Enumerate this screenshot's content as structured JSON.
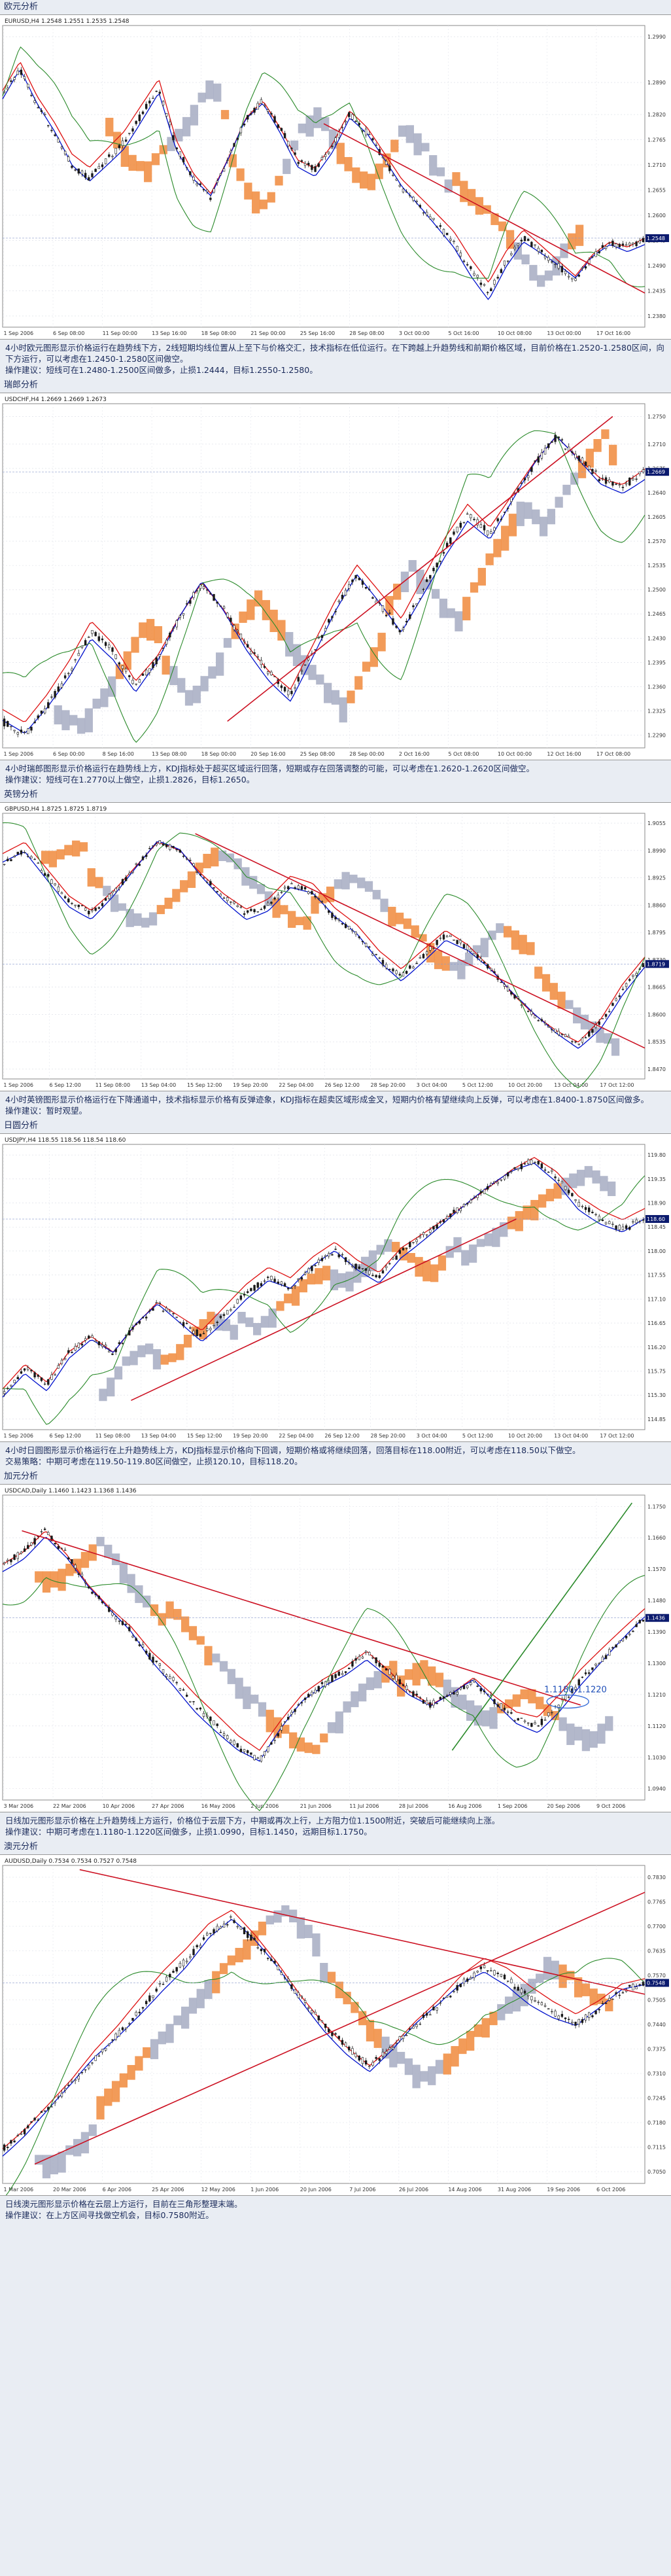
{
  "sections": [
    {
      "title": "欧元分析",
      "chart_data": {
        "type": "candlestick",
        "symbol_line": "EURUSD,H4  1.2548  1.2551  1.2535  1.2548",
        "x_ticks": [
          "1 Sep 2006",
          "6 Sep 08:00",
          "11 Sep 00:00",
          "13 Sep 16:00",
          "18 Sep 08:00",
          "21 Sep 00:00",
          "25 Sep 16:00",
          "28 Sep 08:00",
          "3 Oct 00:00",
          "5 Oct 16:00",
          "10 Oct 08:00",
          "13 Oct 00:00",
          "17 Oct 16:00"
        ],
        "y_ticks": [
          "1.2990",
          "1.2890",
          "1.2820",
          "1.2765",
          "1.2710",
          "1.2655",
          "1.2600",
          "1.2545",
          "1.2490",
          "1.2435",
          "1.2380"
        ],
        "price_badge": "1.2548",
        "path": [
          1.286,
          1.292,
          1.284,
          1.278,
          1.271,
          1.268,
          1.272,
          1.276,
          1.282,
          1.288,
          1.275,
          1.268,
          1.264,
          1.272,
          1.281,
          1.285,
          1.279,
          1.272,
          1.27,
          1.275,
          1.282,
          1.278,
          1.272,
          1.266,
          1.262,
          1.258,
          1.254,
          1.248,
          1.243,
          1.25,
          1.255,
          1.252,
          1.249,
          1.246,
          1.251,
          1.254,
          1.253,
          1.255
        ],
        "trend_lines": [
          {
            "from": [
              0.5,
              1.28
            ],
            "to": [
              1.0,
              1.243
            ],
            "color": "#cc1122"
          }
        ],
        "cloud_span": [
          0.16,
          0.9
        ]
      },
      "desc": [
        "4小时欧元图形显示价格运行在趋势线下方，2线短期均线位置从上至下与价格交汇，技术指标在低位运行。在下跨越上升趋势线和前期价格区域，目前价格在1.2520-1.2580区间，向下方运行，可以考虑在1.2450-1.2580区间做空。",
        "操作建议：短线可在1.2480-1.2500区间做多，止损1.2444，目标1.2550-1.2580。"
      ]
    },
    {
      "title": "瑞郎分析",
      "chart_data": {
        "type": "candlestick",
        "symbol_line": "USDCHF,H4  1.2669  1.2669  1.2673",
        "x_ticks": [
          "1 Sep 2006",
          "6 Sep 00:00",
          "8 Sep 16:00",
          "13 Sep 08:00",
          "18 Sep 00:00",
          "20 Sep 16:00",
          "25 Sep 08:00",
          "28 Sep 00:00",
          "2 Oct 16:00",
          "5 Oct 08:00",
          "10 Oct 00:00",
          "12 Oct 16:00",
          "17 Oct 08:00"
        ],
        "y_ticks": [
          "1.2750",
          "1.2710",
          "1.2675",
          "1.2640",
          "1.2605",
          "1.2570",
          "1.2535",
          "1.2500",
          "1.2465",
          "1.2430",
          "1.2395",
          "1.2360",
          "1.2325",
          "1.2290"
        ],
        "price_badge": "1.2669",
        "path": [
          1.231,
          1.229,
          1.233,
          1.238,
          1.244,
          1.241,
          1.236,
          1.24,
          1.246,
          1.251,
          1.247,
          1.242,
          1.238,
          1.235,
          1.241,
          1.247,
          1.252,
          1.248,
          1.244,
          1.25,
          1.256,
          1.261,
          1.258,
          1.263,
          1.268,
          1.272,
          1.269,
          1.266,
          1.265,
          1.267
        ],
        "trend_lines": [
          {
            "from": [
              0.35,
              1.231
            ],
            "to": [
              0.95,
              1.275
            ],
            "color": "#cc1122"
          }
        ],
        "cloud_span": [
          0.08,
          0.95
        ]
      },
      "desc": [
        "4小时瑞郎图形显示价格运行在趋势线上方，KDJ指标处于超买区域运行回落，短期或存在回落调整的可能，可以考虑在1.2620-1.2620区间做空。",
        "操作建议：短线可在1.2770以上做空，止损1.2826，目标1.2650。"
      ]
    },
    {
      "title": "英镑分析",
      "chart_data": {
        "type": "candlestick",
        "symbol_line": "GBPUSD,H4  1.8725  1.8725  1.8719",
        "x_ticks": [
          "1 Sep 2006",
          "6 Sep 12:00",
          "11 Sep 08:00",
          "13 Sep 04:00",
          "15 Sep 12:00",
          "19 Sep 20:00",
          "22 Sep 04:00",
          "26 Sep 12:00",
          "28 Sep 20:00",
          "3 Oct 04:00",
          "5 Oct 12:00",
          "10 Oct 20:00",
          "13 Oct 04:00",
          "17 Oct 12:00"
        ],
        "y_ticks": [
          "1.9055",
          "1.8990",
          "1.8925",
          "1.8860",
          "1.8795",
          "1.8730",
          "1.8665",
          "1.8600",
          "1.8535",
          "1.8470"
        ],
        "price_badge": "1.8719",
        "path": [
          1.896,
          1.899,
          1.893,
          1.887,
          1.884,
          1.889,
          1.895,
          1.901,
          1.899,
          1.893,
          1.888,
          1.884,
          1.886,
          1.891,
          1.889,
          1.883,
          1.879,
          1.873,
          1.869,
          1.874,
          1.879,
          1.876,
          1.871,
          1.865,
          1.86,
          1.856,
          1.853,
          1.858,
          1.866,
          1.872
        ],
        "trend_lines": [
          {
            "from": [
              0.3,
              1.903
            ],
            "to": [
              1.0,
              1.852
            ],
            "color": "#cc1122"
          }
        ],
        "cloud_span": [
          0.06,
          0.95
        ]
      },
      "desc": [
        "4小时英镑图形显示价格运行在下降通道中，技术指标显示价格有反弹迹象，KDJ指标在超卖区域形成金叉，短期内价格有望继续向上反弹，可以考虑在1.8400-1.8750区间做多。",
        "操作建议：暂时观望。"
      ]
    },
    {
      "title": "日圆分析",
      "chart_data": {
        "type": "candlestick",
        "symbol_line": "USDJPY,H4  118.55  118.56  118.54  118.60",
        "x_ticks": [
          "1 Sep 2006",
          "6 Sep 12:00",
          "11 Sep 08:00",
          "13 Sep 04:00",
          "15 Sep 12:00",
          "19 Sep 20:00",
          "22 Sep 04:00",
          "26 Sep 12:00",
          "28 Sep 20:00",
          "3 Oct 04:00",
          "5 Oct 12:00",
          "10 Oct 20:00",
          "13 Oct 04:00",
          "17 Oct 12:00"
        ],
        "y_ticks": [
          "119.80",
          "119.35",
          "118.90",
          "118.45",
          "118.00",
          "117.55",
          "117.10",
          "116.65",
          "116.20",
          "115.75",
          "115.30",
          "114.85"
        ],
        "price_badge": "118.60",
        "path": [
          115.3,
          115.8,
          115.5,
          116.1,
          116.4,
          116.1,
          116.6,
          117.0,
          116.7,
          116.4,
          116.8,
          117.2,
          117.5,
          117.3,
          117.7,
          118.0,
          117.7,
          117.5,
          118.0,
          118.3,
          118.6,
          118.9,
          119.2,
          119.5,
          119.7,
          119.4,
          118.9,
          118.6,
          118.4,
          118.6
        ],
        "trend_lines": [
          {
            "from": [
              0.2,
              115.2
            ],
            "to": [
              0.8,
              118.6
            ],
            "color": "#cc1122"
          }
        ],
        "cloud_span": [
          0.15,
          0.95
        ]
      },
      "desc": [
        "4小时日圆图形显示价格运行在上升趋势线上方，KDJ指标显示价格向下回调，短期价格或将继续回落，回落目标在118.00附近，可以考虑在118.50以下做空。",
        "交易策略：中期可考虑在119.50-119.80区间做空，止损120.10，目标118.20。"
      ]
    },
    {
      "title": "加元分析",
      "chart_data": {
        "type": "candlestick",
        "symbol_line": "USDCAD,Daily  1.1460  1.1423  1.1368  1.1436",
        "x_ticks": [
          "3 Mar 2006",
          "22 Mar 2006",
          "10 Apr 2006",
          "27 Apr 2006",
          "16 May 2006",
          "2 Jun 2006",
          "21 Jun 2006",
          "11 Jul 2006",
          "28 Jul 2006",
          "16 Aug 2006",
          "1 Sep 2006",
          "20 Sep 2006",
          "9 Oct 2006"
        ],
        "y_ticks": [
          "1.1750",
          "1.1660",
          "1.1570",
          "1.1480",
          "1.1390",
          "1.1300",
          "1.1210",
          "1.1120",
          "1.1030",
          "1.0940"
        ],
        "price_badge": "1.1436",
        "annotation": "1.1180-1.1220",
        "path": [
          1.158,
          1.162,
          1.168,
          1.161,
          1.152,
          1.145,
          1.139,
          1.131,
          1.125,
          1.118,
          1.112,
          1.106,
          1.102,
          1.111,
          1.119,
          1.124,
          1.128,
          1.133,
          1.128,
          1.122,
          1.118,
          1.121,
          1.125,
          1.119,
          1.114,
          1.112,
          1.118,
          1.125,
          1.131,
          1.137,
          1.143
        ],
        "trend_lines": [
          {
            "from": [
              0.03,
              1.168
            ],
            "to": [
              0.9,
              1.118
            ],
            "color": "#cc1122"
          },
          {
            "from": [
              0.7,
              1.105
            ],
            "to": [
              0.98,
              1.176
            ],
            "color": "#2a8a2a"
          }
        ],
        "cloud_span": [
          0.05,
          0.95
        ]
      },
      "desc": [
        "日线加元图形显示价格在上升趋势线上方运行，价格位于云层下方，中期或再次上行，上方阻力位1.1500附近，突破后可能继续向上涨。",
        "操作建议：中期可考虑在1.1180-1.1220区间做多，止损1.0990，目标1.1450，远期目标1.1750。"
      ]
    },
    {
      "title": "澳元分析",
      "chart_data": {
        "type": "candlestick",
        "symbol_line": "AUDUSD,Daily  0.7534  0.7534  0.7527  0.7548",
        "x_ticks": [
          "1 Mar 2006",
          "20 Mar 2006",
          "6 Apr 2006",
          "25 Apr 2006",
          "12 May 2006",
          "1 Jun 2006",
          "20 Jun 2006",
          "7 Jul 2006",
          "26 Jul 2006",
          "14 Aug 2006",
          "31 Aug 2006",
          "19 Sep 2006",
          "6 Oct 2006"
        ],
        "y_ticks": [
          "0.7830",
          "0.7765",
          "0.7700",
          "0.7635",
          "0.7570",
          "0.7505",
          "0.7440",
          "0.7375",
          "0.7310",
          "0.7245",
          "0.7180",
          "0.7115",
          "0.7050"
        ],
        "price_badge": "0.7548",
        "path": [
          0.711,
          0.716,
          0.722,
          0.728,
          0.735,
          0.741,
          0.748,
          0.755,
          0.761,
          0.768,
          0.772,
          0.766,
          0.759,
          0.751,
          0.744,
          0.738,
          0.733,
          0.738,
          0.744,
          0.749,
          0.755,
          0.759,
          0.756,
          0.751,
          0.747,
          0.744,
          0.748,
          0.753,
          0.755
        ],
        "trend_lines": [
          {
            "from": [
              0.05,
              0.707
            ],
            "to": [
              1.0,
              0.779
            ],
            "color": "#cc1122"
          },
          {
            "from": [
              0.12,
              0.785
            ],
            "to": [
              1.0,
              0.752
            ],
            "color": "#cc1122"
          }
        ],
        "cloud_span": [
          0.05,
          0.95
        ]
      },
      "desc": [
        "日线澳元图形显示价格在云层上方运行，目前在三角形整理末端。",
        "操作建议：在上方区间寻找做空机会，目标0.7580附近。"
      ]
    }
  ],
  "colors": {
    "candle": "#1a1a1a",
    "ma_red": "#dd1111",
    "ma_blue": "#0011cc",
    "ma_green": "#2a8a2a",
    "cloud_orange": "#f08a3c",
    "cloud_grey": "#a6abc2",
    "trend_red": "#cc1122",
    "badge_bg": "#0b1a6e"
  }
}
